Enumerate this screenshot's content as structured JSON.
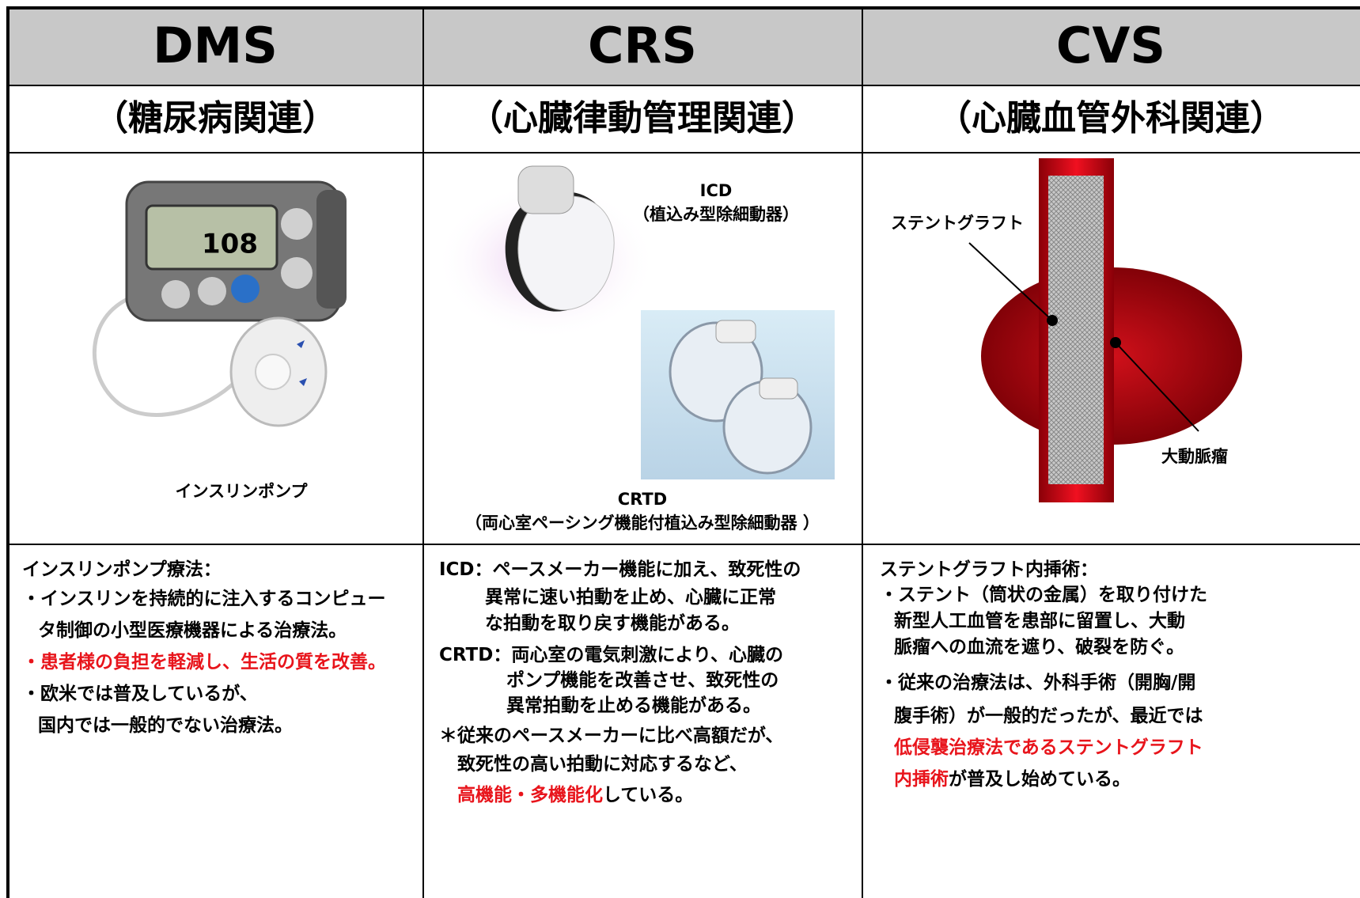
{
  "columns": [
    {
      "title": "DMS",
      "subtitle": "（糖尿病関連）",
      "labels": [
        "インスリンポンプ"
      ],
      "lines": [
        [
          {
            "text": "インスリンポンプ療法："
          }
        ],
        [
          {
            "text": "・インスリンを持続的に注入するコンピュー"
          }
        ],
        [
          {
            "text": "タ制御の小型医療機器による治療法。"
          }
        ],
        [
          {
            "text": "・患者様の負担を軽減し、生活の質を改善。",
            "color": "#e8141b"
          }
        ],
        [
          {
            "text": "・欧米では普及しているが、"
          }
        ],
        [
          {
            "text": "国内では一般的でない治療法。"
          }
        ]
      ]
    },
    {
      "title": "CRS",
      "subtitle": "（心臓律動管理関連）",
      "labels": [
        "ICD",
        "（植込み型除細動器）",
        "CRTD",
        "（両心室ペーシング機能付植込み型除細動器 ）"
      ],
      "lines": [
        [
          {
            "text": "ICD：ペースメーカー機能に加え、致死性の"
          }
        ],
        [
          {
            "text": "異常に速い拍動を止め、心臓に正常"
          }
        ],
        [
          {
            "text": "な拍動を取り戻す機能がある。"
          }
        ],
        [
          {
            "text": "CRTD：両心室の電気刺激により、心臓の"
          }
        ],
        [
          {
            "text": "ポンプ機能を改善させ、致死性の"
          }
        ],
        [
          {
            "text": "異常拍動を止める機能がある。"
          }
        ],
        [
          {
            "text": "＊従来のペースメーカーに比べ高額だが、"
          }
        ],
        [
          {
            "text": "致死性の高い拍動に対応するなど、"
          }
        ],
        [
          {
            "text": "高機能・多機能化",
            "color": "#e8141b"
          },
          {
            "text": "している。"
          }
        ]
      ]
    },
    {
      "title": "CVS",
      "subtitle": "（心臓血管外科関連）",
      "labels": [
        "ステントグラフト",
        "大動脈瘤"
      ],
      "lines": [
        [
          {
            "text": "ステントグラフト内挿術："
          }
        ],
        [
          {
            "text": "・ステント（筒状の金属）を取り付けた"
          }
        ],
        [
          {
            "text": "新型人工血管を患部に留置し、大動"
          }
        ],
        [
          {
            "text": "脈瘤への血流を遮り、破裂を防ぐ。"
          }
        ],
        [
          {
            "text": "・従来の治療法は、外科手術（開胸/開"
          }
        ],
        [
          {
            "text": "腹手術）が一般的だったが、最近では"
          }
        ],
        [
          {
            "text": "低侵襲治療法であるステントグラフト",
            "color": "#e8141b"
          }
        ],
        [
          {
            "text": "内挿術",
            "color": "#e8141b"
          },
          {
            "text": "が普及し始めている。"
          }
        ]
      ]
    }
  ]
}
